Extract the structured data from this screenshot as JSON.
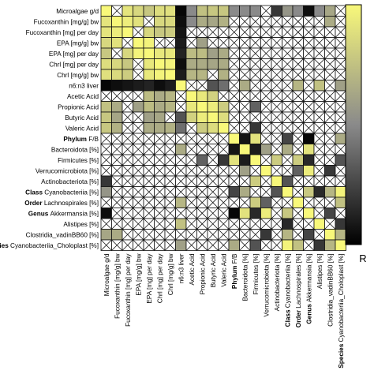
{
  "chart_data": {
    "type": "heatmap",
    "title": "",
    "colorbar_label": "R",
    "colorscale": {
      "low": "#000000",
      "mid": "#8a8a8a",
      "high": "#f8f87a",
      "vmin": -1,
      "vmax": 1
    },
    "crossed_marker": "X",
    "variables": [
      {
        "prefix": "",
        "name": "Microalgae g/d"
      },
      {
        "prefix": "",
        "name": "Fucoxanthin [mg/g] bw"
      },
      {
        "prefix": "",
        "name": "Fucoxanthin [mg] per day"
      },
      {
        "prefix": "",
        "name": "EPA [mg/g] bw"
      },
      {
        "prefix": "",
        "name": "EPA [mg] per day"
      },
      {
        "prefix": "",
        "name": "Chrl [mg] per day"
      },
      {
        "prefix": "",
        "name": "Chrl [mg/g] bw"
      },
      {
        "prefix": "",
        "name": "n6:n3 liver"
      },
      {
        "prefix": "",
        "name": "Acetic Acid"
      },
      {
        "prefix": "",
        "name": "Propionic Acid"
      },
      {
        "prefix": "",
        "name": "Butyric Acid"
      },
      {
        "prefix": "",
        "name": "Valeric Acid"
      },
      {
        "prefix": "Phylum",
        "name": "F/B"
      },
      {
        "prefix": "",
        "name": "Bacteroidota [%]"
      },
      {
        "prefix": "",
        "name": "Firmicutes [%]"
      },
      {
        "prefix": "",
        "name": "Verrucomicrobiota [%]"
      },
      {
        "prefix": "",
        "name": "Actinobacteriota [%]"
      },
      {
        "prefix": "Class",
        "name": "Cyanobacteriia [%]"
      },
      {
        "prefix": "Order",
        "name": "Lachnospirales [%]"
      },
      {
        "prefix": "Genus",
        "name": "Akkermansia [%]"
      },
      {
        "prefix": "",
        "name": "Alistipes [%]"
      },
      {
        "prefix": "",
        "name": "Clostridia_vadinBB60 [%]"
      },
      {
        "prefix": "Species",
        "name": "Cyanobacteriia_Choloplast [%]"
      }
    ],
    "correlations": [
      [
        1.0,
        0.82,
        0.82,
        0.7,
        0.55,
        0.75,
        0.78,
        -0.95,
        0.0,
        0.5,
        0.55,
        0.55,
        0.0,
        0.0,
        0.0,
        0.0,
        -0.6,
        0.1,
        0.0,
        -0.9,
        0.0,
        0.25,
        0.0
      ],
      [
        0.82,
        1.0,
        0.9,
        0.8,
        0.0,
        0.7,
        0.72,
        -0.9,
        0.0,
        0.3,
        0.25,
        0.35,
        0.0,
        0.0,
        0.0,
        0.0,
        0.0,
        0.0,
        0.0,
        0.0,
        0.0,
        0.3,
        0.0
      ],
      [
        0.82,
        0.9,
        1.0,
        0.0,
        0.7,
        0.55,
        0.6,
        -0.85,
        0.0,
        0.0,
        0.0,
        0.0,
        0.0,
        0.0,
        0.0,
        0.0,
        0.0,
        0.0,
        0.0,
        0.0,
        0.0,
        0.0,
        0.0
      ],
      [
        0.7,
        0.8,
        0.0,
        1.0,
        0.95,
        0.0,
        0.0,
        -0.8,
        0.0,
        0.2,
        0.0,
        0.0,
        0.0,
        0.0,
        0.0,
        0.0,
        0.0,
        0.0,
        0.0,
        0.0,
        0.0,
        0.0,
        0.0
      ],
      [
        0.55,
        0.0,
        0.7,
        0.95,
        1.0,
        0.85,
        0.85,
        -0.75,
        0.45,
        0.45,
        0.2,
        0.3,
        0.0,
        0.0,
        0.0,
        0.0,
        0.0,
        0.0,
        0.0,
        0.0,
        0.0,
        0.0,
        0.0
      ],
      [
        0.75,
        0.7,
        0.55,
        0.0,
        0.85,
        1.0,
        0.95,
        -0.9,
        0.3,
        0.3,
        0.25,
        0.3,
        0.0,
        0.0,
        0.0,
        0.0,
        0.0,
        0.0,
        0.0,
        0.0,
        0.0,
        0.0,
        0.0
      ],
      [
        0.78,
        0.72,
        0.6,
        0.0,
        0.85,
        0.95,
        1.0,
        -0.8,
        0.4,
        0.4,
        0.0,
        0.35,
        0.0,
        0.0,
        0.0,
        0.0,
        0.0,
        0.0,
        0.0,
        0.0,
        0.0,
        0.0,
        0.0
      ],
      [
        -0.95,
        -0.9,
        -0.85,
        -0.8,
        -0.75,
        -0.9,
        -0.8,
        1.0,
        0.0,
        0.0,
        -0.4,
        -0.2,
        0.0,
        0.3,
        0.0,
        0.0,
        0.0,
        0.0,
        0.4,
        0.0,
        0.5,
        0.0,
        0.2
      ],
      [
        0.0,
        0.0,
        0.0,
        0.0,
        0.45,
        0.3,
        0.4,
        0.0,
        1.0,
        0.85,
        0.65,
        0.0,
        0.0,
        0.0,
        0.0,
        0.0,
        0.0,
        0.0,
        0.0,
        0.0,
        0.0,
        0.0,
        0.0
      ],
      [
        0.5,
        0.3,
        0.0,
        0.2,
        0.45,
        0.3,
        0.4,
        0.0,
        0.85,
        1.0,
        0.9,
        0.6,
        0.0,
        0.0,
        -0.3,
        0.0,
        0.0,
        0.0,
        0.0,
        0.0,
        0.0,
        0.0,
        0.0
      ],
      [
        0.55,
        0.25,
        0.0,
        0.0,
        0.2,
        0.25,
        0.0,
        -0.4,
        0.65,
        0.9,
        1.0,
        0.75,
        0.0,
        0.0,
        0.0,
        0.0,
        0.0,
        0.0,
        0.0,
        0.0,
        0.0,
        0.0,
        0.0
      ],
      [
        0.55,
        0.35,
        0.0,
        0.0,
        0.3,
        0.3,
        0.35,
        -0.2,
        0.0,
        0.6,
        0.75,
        1.0,
        0.0,
        0.0,
        -0.6,
        0.0,
        0.0,
        0.0,
        0.0,
        0.0,
        0.0,
        0.0,
        0.0
      ],
      [
        0.0,
        0.0,
        0.0,
        0.0,
        0.0,
        0.0,
        0.0,
        0.0,
        0.0,
        0.0,
        0.0,
        0.0,
        1.0,
        -0.85,
        0.8,
        0.0,
        0.0,
        -0.5,
        0.0,
        -0.95,
        0.0,
        0.0,
        0.3
      ],
      [
        0.0,
        0.0,
        0.0,
        0.0,
        0.0,
        0.0,
        0.0,
        0.3,
        0.0,
        0.0,
        0.0,
        0.0,
        -0.85,
        1.0,
        -0.8,
        0.2,
        0.0,
        0.3,
        0.0,
        0.8,
        0.0,
        0.0,
        0.0
      ],
      [
        0.0,
        0.0,
        0.0,
        0.0,
        0.0,
        0.0,
        0.0,
        0.0,
        0.0,
        -0.3,
        0.0,
        -0.6,
        0.8,
        -0.8,
        1.0,
        0.0,
        0.6,
        0.0,
        0.6,
        -0.7,
        0.0,
        0.0,
        -0.4
      ],
      [
        0.0,
        0.0,
        0.0,
        0.0,
        0.0,
        0.0,
        0.0,
        0.0,
        0.0,
        0.0,
        0.0,
        0.0,
        0.0,
        0.2,
        0.0,
        1.0,
        0.0,
        0.0,
        -0.3,
        0.9,
        0.0,
        -0.6,
        0.0
      ],
      [
        -0.6,
        0.0,
        0.0,
        0.0,
        0.0,
        0.0,
        0.0,
        0.0,
        0.0,
        0.0,
        0.0,
        0.0,
        0.0,
        0.0,
        0.6,
        0.0,
        1.0,
        -0.4,
        0.0,
        0.0,
        0.0,
        0.0,
        0.0
      ],
      [
        0.1,
        0.0,
        0.0,
        0.0,
        0.0,
        0.0,
        0.0,
        0.0,
        0.0,
        0.0,
        0.0,
        0.0,
        -0.5,
        0.3,
        0.0,
        0.0,
        -0.4,
        1.0,
        0.0,
        0.55,
        -0.7,
        0.4,
        0.95
      ],
      [
        0.0,
        0.0,
        0.0,
        0.0,
        0.0,
        0.0,
        0.0,
        0.4,
        0.0,
        0.0,
        0.0,
        0.0,
        0.0,
        0.0,
        0.6,
        -0.3,
        0.0,
        0.0,
        1.0,
        0.0,
        0.0,
        0.0,
        0.5
      ],
      [
        -0.9,
        0.0,
        0.0,
        0.0,
        0.0,
        0.0,
        0.0,
        0.0,
        0.0,
        0.0,
        0.0,
        0.0,
        -0.95,
        0.8,
        -0.7,
        0.9,
        0.0,
        0.55,
        0.0,
        1.0,
        0.0,
        -0.5,
        0.0
      ],
      [
        0.0,
        0.0,
        0.0,
        0.0,
        0.0,
        0.0,
        0.0,
        0.5,
        0.0,
        0.0,
        0.0,
        0.0,
        0.0,
        0.0,
        0.0,
        0.0,
        0.0,
        -0.7,
        0.0,
        0.0,
        1.0,
        0.0,
        -0.6
      ],
      [
        0.25,
        0.3,
        0.0,
        0.0,
        0.0,
        0.0,
        0.0,
        0.0,
        0.0,
        0.0,
        0.0,
        0.0,
        0.0,
        0.0,
        0.0,
        -0.6,
        0.0,
        0.4,
        0.0,
        -0.5,
        0.0,
        1.0,
        0.4
      ],
      [
        0.0,
        0.0,
        0.0,
        0.0,
        0.0,
        0.0,
        0.0,
        0.2,
        0.0,
        0.0,
        0.0,
        0.0,
        0.3,
        0.0,
        -0.4,
        0.0,
        0.0,
        0.95,
        0.5,
        0.0,
        -0.6,
        0.4,
        1.0
      ]
    ],
    "crossed": [
      [
        0,
        1,
        0,
        0,
        0,
        0,
        0,
        0,
        0,
        0,
        0,
        0,
        0,
        0,
        0,
        1,
        0,
        0,
        0,
        0,
        0,
        0,
        1
      ],
      [
        0,
        0,
        0,
        0,
        1,
        0,
        0,
        0,
        0,
        0,
        0,
        0,
        1,
        1,
        1,
        1,
        1,
        1,
        1,
        1,
        1,
        0,
        1
      ],
      [
        0,
        0,
        0,
        1,
        0,
        0,
        0,
        0,
        1,
        1,
        1,
        1,
        1,
        1,
        1,
        1,
        1,
        1,
        1,
        1,
        1,
        1,
        1
      ],
      [
        0,
        0,
        1,
        0,
        0,
        1,
        1,
        0,
        1,
        0,
        1,
        1,
        1,
        1,
        1,
        1,
        1,
        1,
        1,
        1,
        1,
        1,
        1
      ],
      [
        0,
        1,
        0,
        0,
        0,
        0,
        0,
        0,
        0,
        0,
        0,
        0,
        1,
        1,
        1,
        1,
        1,
        1,
        1,
        1,
        1,
        1,
        1
      ],
      [
        0,
        0,
        0,
        1,
        0,
        0,
        0,
        0,
        0,
        0,
        0,
        0,
        1,
        1,
        1,
        1,
        1,
        1,
        1,
        1,
        1,
        1,
        1
      ],
      [
        0,
        0,
        0,
        1,
        0,
        0,
        0,
        0,
        0,
        0,
        1,
        0,
        1,
        1,
        1,
        1,
        1,
        1,
        1,
        1,
        1,
        1,
        1
      ],
      [
        0,
        0,
        0,
        0,
        0,
        0,
        0,
        0,
        1,
        1,
        0,
        0,
        1,
        0,
        1,
        1,
        1,
        1,
        0,
        1,
        0,
        1,
        0
      ],
      [
        1,
        1,
        1,
        1,
        0,
        0,
        0,
        1,
        0,
        0,
        0,
        1,
        1,
        1,
        1,
        1,
        1,
        1,
        1,
        1,
        1,
        1,
        1
      ],
      [
        0,
        0,
        1,
        0,
        0,
        0,
        0,
        1,
        0,
        0,
        0,
        0,
        1,
        1,
        0,
        1,
        1,
        1,
        1,
        1,
        1,
        1,
        1
      ],
      [
        0,
        0,
        1,
        1,
        0,
        0,
        1,
        0,
        0,
        0,
        0,
        0,
        1,
        1,
        1,
        1,
        1,
        1,
        1,
        1,
        1,
        1,
        1
      ],
      [
        0,
        0,
        1,
        1,
        0,
        0,
        0,
        0,
        1,
        0,
        0,
        0,
        1,
        1,
        0,
        1,
        1,
        1,
        1,
        1,
        1,
        1,
        1
      ],
      [
        1,
        1,
        1,
        1,
        1,
        1,
        1,
        1,
        1,
        1,
        1,
        1,
        0,
        0,
        0,
        1,
        1,
        0,
        1,
        0,
        1,
        1,
        0
      ],
      [
        1,
        1,
        1,
        1,
        1,
        1,
        1,
        0,
        1,
        1,
        1,
        1,
        0,
        0,
        0,
        0,
        1,
        0,
        1,
        0,
        1,
        1,
        1
      ],
      [
        1,
        1,
        1,
        1,
        1,
        1,
        1,
        1,
        1,
        0,
        1,
        0,
        0,
        0,
        0,
        1,
        0,
        1,
        0,
        0,
        1,
        1,
        0
      ],
      [
        1,
        1,
        1,
        1,
        1,
        1,
        1,
        1,
        1,
        1,
        1,
        1,
        1,
        0,
        1,
        0,
        1,
        1,
        0,
        0,
        1,
        0,
        1
      ],
      [
        0,
        1,
        1,
        1,
        1,
        1,
        1,
        1,
        1,
        1,
        1,
        1,
        1,
        1,
        0,
        1,
        0,
        0,
        1,
        1,
        1,
        1,
        1
      ],
      [
        0,
        1,
        1,
        1,
        1,
        1,
        1,
        1,
        1,
        1,
        1,
        1,
        0,
        0,
        1,
        1,
        0,
        0,
        1,
        0,
        0,
        0,
        0
      ],
      [
        1,
        1,
        1,
        1,
        1,
        1,
        1,
        0,
        1,
        1,
        1,
        1,
        1,
        1,
        0,
        0,
        1,
        1,
        0,
        1,
        1,
        1,
        0
      ],
      [
        0,
        1,
        1,
        1,
        1,
        1,
        1,
        1,
        1,
        1,
        1,
        1,
        0,
        0,
        0,
        0,
        1,
        0,
        1,
        0,
        1,
        0,
        1
      ],
      [
        1,
        1,
        1,
        1,
        1,
        1,
        1,
        0,
        1,
        1,
        1,
        1,
        1,
        1,
        1,
        1,
        1,
        0,
        1,
        1,
        0,
        1,
        0
      ],
      [
        0,
        0,
        1,
        1,
        1,
        1,
        1,
        1,
        1,
        1,
        1,
        1,
        1,
        1,
        1,
        0,
        1,
        0,
        1,
        0,
        1,
        0,
        0
      ],
      [
        1,
        1,
        1,
        1,
        1,
        1,
        1,
        0,
        1,
        1,
        1,
        1,
        0,
        1,
        0,
        1,
        1,
        0,
        0,
        1,
        0,
        0,
        0
      ]
    ]
  }
}
